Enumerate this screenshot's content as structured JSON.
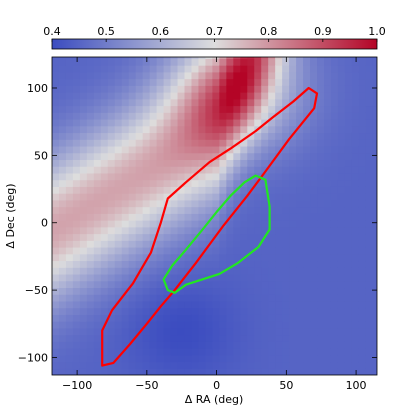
{
  "chart_data": {
    "type": "heatmap",
    "title": "",
    "xlabel": "Δ RA (deg)",
    "ylabel": "Δ Dec (deg)",
    "xlim": [
      -118,
      115
    ],
    "ylim": [
      -113,
      123
    ],
    "x_ticks": [
      -100,
      -50,
      0,
      50,
      100
    ],
    "x_tick_labels": [
      "−100",
      "−50",
      "0",
      "50",
      "100"
    ],
    "y_ticks": [
      -100,
      -50,
      0,
      50,
      100
    ],
    "y_tick_labels": [
      "−100",
      "−50",
      "0",
      "50",
      "100"
    ],
    "grid": false,
    "colorbar": {
      "position": "top",
      "range": [
        0.4,
        1.0
      ],
      "ticks": [
        0.4,
        0.5,
        0.6,
        0.7,
        0.8,
        0.9,
        1.0
      ],
      "tick_labels": [
        "0.4",
        "0.5",
        "0.6",
        "0.7",
        "0.8",
        "0.9",
        "1.0"
      ],
      "colormap": "coolwarm",
      "colors": [
        "#3b4cc0",
        "#dddddd",
        "#b40426"
      ]
    },
    "heatmap_features": {
      "ridge_line": [
        [
          -118,
          -5
        ],
        [
          0,
          70
        ],
        [
          20,
          115
        ]
      ],
      "peak": {
        "x": 15,
        "y": 100,
        "value": 1.0
      },
      "trough": {
        "x": -25,
        "y": -80,
        "value": 0.42
      }
    },
    "contours": [
      {
        "color": "#ff0000",
        "points": [
          [
            -82,
            -100
          ],
          [
            -82,
            -106
          ],
          [
            -74,
            -104
          ],
          [
            -62,
            -90
          ],
          [
            -50,
            -75
          ],
          [
            -40,
            -62
          ],
          [
            -30,
            -50
          ],
          [
            -15,
            -30
          ],
          [
            5,
            -2
          ],
          [
            22,
            20
          ],
          [
            35,
            38
          ],
          [
            52,
            62
          ],
          [
            70,
            85
          ],
          [
            72,
            96
          ],
          [
            66,
            100
          ],
          [
            55,
            90
          ],
          [
            40,
            78
          ],
          [
            28,
            68
          ],
          [
            10,
            55
          ],
          [
            -5,
            45
          ],
          [
            -22,
            30
          ],
          [
            -35,
            18
          ],
          [
            -40,
            0
          ],
          [
            -47,
            -22
          ],
          [
            -60,
            -45
          ],
          [
            -75,
            -65
          ],
          [
            -82,
            -80
          ],
          [
            -82,
            -100
          ]
        ]
      },
      {
        "color": "#22e622",
        "points": [
          [
            -35,
            -50
          ],
          [
            -30,
            -52
          ],
          [
            -22,
            -46
          ],
          [
            -10,
            -42
          ],
          [
            2,
            -38
          ],
          [
            15,
            -30
          ],
          [
            30,
            -18
          ],
          [
            38,
            -5
          ],
          [
            38,
            12
          ],
          [
            35,
            32
          ],
          [
            28,
            35
          ],
          [
            20,
            30
          ],
          [
            10,
            20
          ],
          [
            0,
            8
          ],
          [
            -10,
            -5
          ],
          [
            -22,
            -20
          ],
          [
            -32,
            -32
          ],
          [
            -38,
            -42
          ],
          [
            -35,
            -50
          ]
        ]
      }
    ]
  }
}
